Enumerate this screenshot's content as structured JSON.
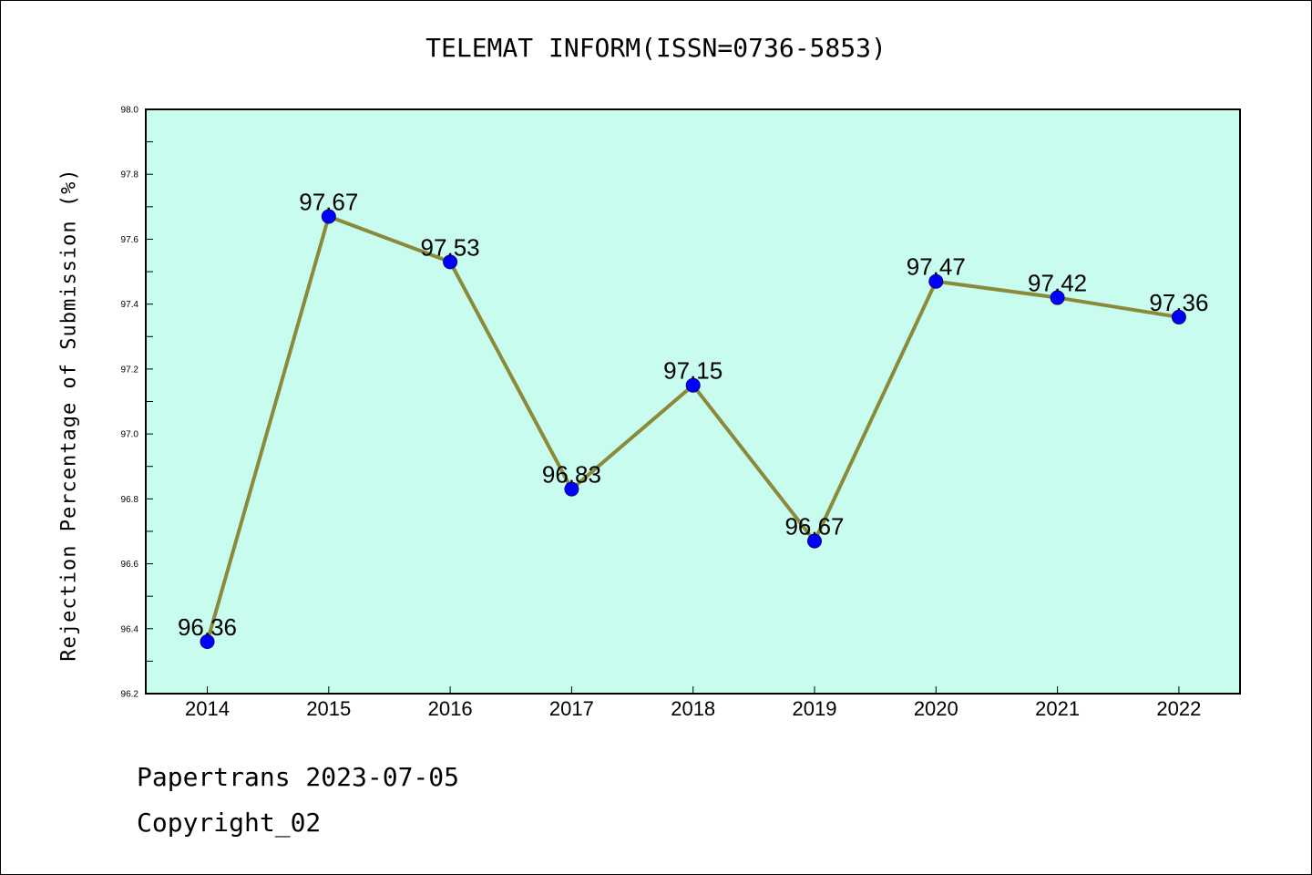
{
  "chart_data": {
    "type": "line",
    "title": "TELEMAT INFORM(ISSN=0736-5853)",
    "ylabel": "Rejection Percentage of Submission (%)",
    "xlabel": "",
    "categories": [
      "2014",
      "2015",
      "2016",
      "2017",
      "2018",
      "2019",
      "2020",
      "2021",
      "2022"
    ],
    "series": [
      {
        "values": [
          96.36,
          97.67,
          97.53,
          96.83,
          97.15,
          96.67,
          97.47,
          97.42,
          97.36
        ],
        "data_labels": [
          "96.36",
          "97.67",
          "97.53",
          "96.83",
          "97.15",
          "96.67",
          "97.47",
          "97.42",
          "97.36"
        ]
      }
    ],
    "ylim": [
      96.2,
      98.0
    ],
    "yticks": [
      "96.2",
      "96.4",
      "96.6",
      "96.8",
      "97.0",
      "97.2",
      "97.4",
      "97.6",
      "97.8",
      "98.0"
    ],
    "grid": false,
    "colors": {
      "plot_background": "#c8fcee",
      "line": "#8b8a3a",
      "marker": "#0000ff",
      "marker_edge": "#00008b"
    }
  },
  "footer": {
    "line1": "Papertrans 2023-07-05",
    "line2": "Copyright_02"
  }
}
